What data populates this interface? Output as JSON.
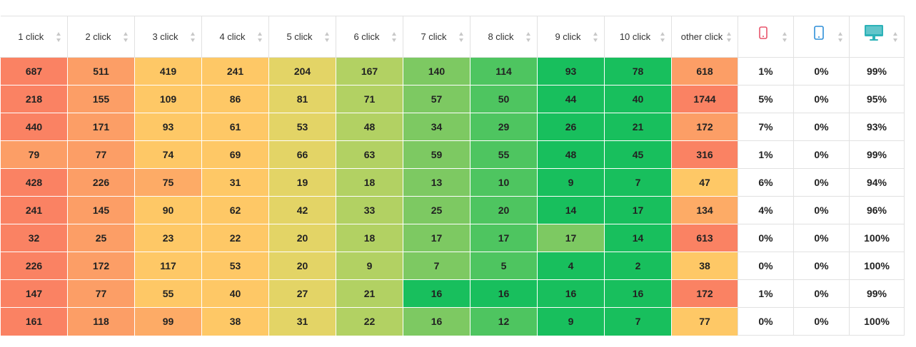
{
  "headers": [
    "1 click",
    "2 click",
    "3 click",
    "4 click",
    "5 click",
    "6 click",
    "7 click",
    "8 click",
    "9 click",
    "10 click",
    "other click"
  ],
  "device_headers": [
    {
      "icon": "mobile-icon",
      "color": "#e8546b"
    },
    {
      "icon": "tablet-icon",
      "color": "#2f8fd8"
    },
    {
      "icon": "desktop-icon",
      "color": "#2cb2b8"
    }
  ],
  "rows": [
    {
      "cells": [
        "687",
        "511",
        "419",
        "241",
        "204",
        "167",
        "140",
        "114",
        "93",
        "78",
        "618"
      ],
      "devices": [
        "1%",
        "0%",
        "99%"
      ]
    },
    {
      "cells": [
        "218",
        "155",
        "109",
        "86",
        "81",
        "71",
        "57",
        "50",
        "44",
        "40",
        "1744"
      ],
      "devices": [
        "5%",
        "0%",
        "95%"
      ]
    },
    {
      "cells": [
        "440",
        "171",
        "93",
        "61",
        "53",
        "48",
        "34",
        "29",
        "26",
        "21",
        "172"
      ],
      "devices": [
        "7%",
        "0%",
        "93%"
      ]
    },
    {
      "cells": [
        "79",
        "77",
        "74",
        "69",
        "66",
        "63",
        "59",
        "55",
        "48",
        "45",
        "316"
      ],
      "devices": [
        "1%",
        "0%",
        "99%"
      ]
    },
    {
      "cells": [
        "428",
        "226",
        "75",
        "31",
        "19",
        "18",
        "13",
        "10",
        "9",
        "7",
        "47"
      ],
      "devices": [
        "6%",
        "0%",
        "94%"
      ]
    },
    {
      "cells": [
        "241",
        "145",
        "90",
        "62",
        "42",
        "33",
        "25",
        "20",
        "14",
        "17",
        "134"
      ],
      "devices": [
        "4%",
        "0%",
        "96%"
      ]
    },
    {
      "cells": [
        "32",
        "25",
        "23",
        "22",
        "20",
        "18",
        "17",
        "17",
        "17",
        "14",
        "613"
      ],
      "devices": [
        "0%",
        "0%",
        "100%"
      ]
    },
    {
      "cells": [
        "226",
        "172",
        "117",
        "53",
        "20",
        "9",
        "7",
        "5",
        "4",
        "2",
        "38"
      ],
      "devices": [
        "0%",
        "0%",
        "100%"
      ]
    },
    {
      "cells": [
        "147",
        "77",
        "55",
        "40",
        "27",
        "21",
        "16",
        "16",
        "16",
        "16",
        "172"
      ],
      "devices": [
        "1%",
        "0%",
        "99%"
      ]
    },
    {
      "cells": [
        "161",
        "118",
        "99",
        "38",
        "31",
        "22",
        "16",
        "12",
        "9",
        "7",
        "77"
      ],
      "devices": [
        "0%",
        "0%",
        "100%"
      ]
    }
  ],
  "colors": {
    "red": "#fa8263",
    "orange": "#fc9e66",
    "light_orange": "#fdab66",
    "yellow": "#fec866",
    "yellow_green": "#e3d466",
    "light_green": "#b2d163",
    "green": "#7dc962",
    "mid_green": "#4ec560",
    "dark_green": "#18bf5d"
  },
  "cell_colors": [
    [
      "red",
      "orange",
      "yellow",
      "yellow",
      "yellow_green",
      "light_green",
      "green",
      "mid_green",
      "dark_green",
      "dark_green",
      "orange"
    ],
    [
      "red",
      "orange",
      "yellow",
      "yellow",
      "yellow_green",
      "light_green",
      "green",
      "mid_green",
      "dark_green",
      "dark_green",
      "red"
    ],
    [
      "red",
      "orange",
      "yellow",
      "yellow",
      "yellow_green",
      "light_green",
      "green",
      "mid_green",
      "dark_green",
      "dark_green",
      "orange"
    ],
    [
      "orange",
      "orange",
      "yellow",
      "yellow",
      "yellow_green",
      "light_green",
      "green",
      "mid_green",
      "dark_green",
      "dark_green",
      "red"
    ],
    [
      "red",
      "orange",
      "light_orange",
      "yellow",
      "yellow_green",
      "light_green",
      "green",
      "mid_green",
      "dark_green",
      "dark_green",
      "yellow"
    ],
    [
      "red",
      "orange",
      "yellow",
      "yellow",
      "yellow_green",
      "light_green",
      "green",
      "mid_green",
      "dark_green",
      "dark_green",
      "light_orange"
    ],
    [
      "red",
      "orange",
      "yellow",
      "yellow",
      "yellow_green",
      "light_green",
      "green",
      "mid_green",
      "green",
      "dark_green",
      "red"
    ],
    [
      "red",
      "orange",
      "yellow",
      "yellow",
      "yellow_green",
      "light_green",
      "green",
      "mid_green",
      "dark_green",
      "dark_green",
      "yellow"
    ],
    [
      "red",
      "orange",
      "yellow",
      "yellow",
      "yellow_green",
      "light_green",
      "dark_green",
      "dark_green",
      "dark_green",
      "dark_green",
      "red"
    ],
    [
      "red",
      "orange",
      "light_orange",
      "yellow",
      "yellow_green",
      "light_green",
      "green",
      "mid_green",
      "dark_green",
      "dark_green",
      "yellow"
    ]
  ]
}
